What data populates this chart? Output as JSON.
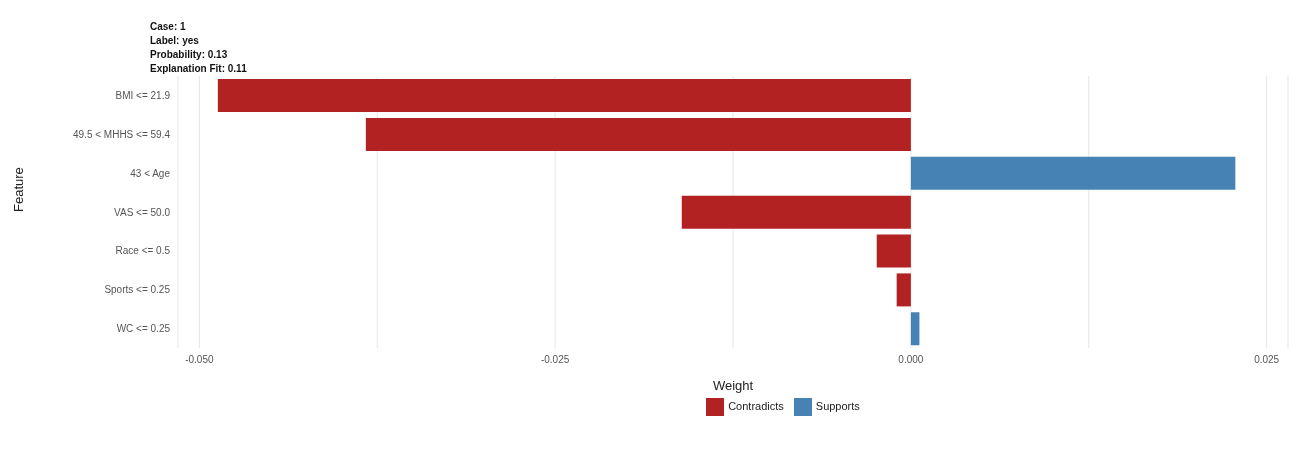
{
  "chart_data": {
    "type": "bar",
    "orientation": "horizontal",
    "stacked": true,
    "annotations": [
      "Case: 1",
      "Label: yes",
      "Probability: 0.13",
      "Explanation Fit: 0.11"
    ],
    "xlabel": "Weight",
    "ylabel": "Feature",
    "categories": [
      "BMI <= 21.9",
      "49.5 < MHHS <= 59.4",
      "43 < Age",
      "VAS <= 50.0",
      "Race <= 0.5",
      "Sports <= 0.25",
      "WC <= 0.25"
    ],
    "series": [
      {
        "name": "Supports",
        "color": "#4682b4",
        "values": [
          null,
          null,
          0.0228,
          null,
          null,
          null,
          0.0006
        ]
      },
      {
        "name": "Contradicts",
        "color": "#b22222",
        "values": [
          -0.0487,
          -0.0383,
          null,
          -0.0161,
          -0.0024,
          -0.001,
          null
        ]
      }
    ],
    "xlim": [
      -0.0515,
      0.0265
    ],
    "xticks": [
      {
        "value": -0.05,
        "label": "-0.050"
      },
      {
        "value": -0.0375,
        "label": null
      },
      {
        "value": -0.025,
        "label": "-0.025"
      },
      {
        "value": -0.0125,
        "label": null
      },
      {
        "value": 0,
        "label": "0.000"
      },
      {
        "value": 0.0125,
        "label": null
      },
      {
        "value": 0.025,
        "label": "0.025"
      }
    ],
    "grid": "x",
    "legend": "bottom"
  }
}
